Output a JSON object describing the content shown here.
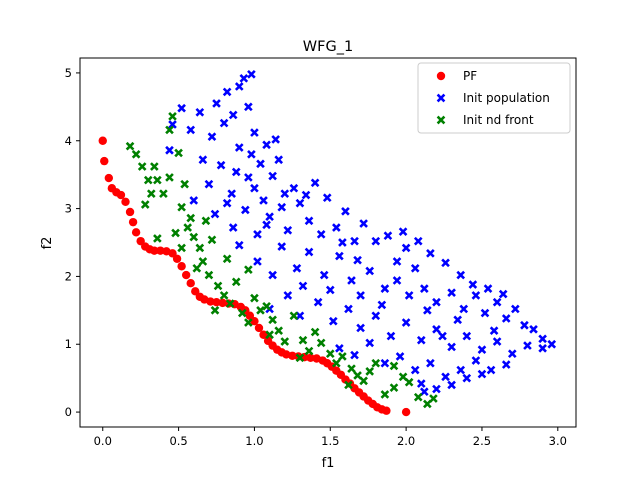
{
  "chart_data": {
    "type": "scatter",
    "title": "WFG_1",
    "xlabel": "f1",
    "ylabel": "f2",
    "xlim": [
      -0.15,
      3.12
    ],
    "ylim": [
      -0.22,
      5.22
    ],
    "xticks": [
      {
        "value": 0.0,
        "label": "0.0"
      },
      {
        "value": 0.5,
        "label": "0.5"
      },
      {
        "value": 1.0,
        "label": "1.0"
      },
      {
        "value": 1.5,
        "label": "1.5"
      },
      {
        "value": 2.0,
        "label": "2.0"
      },
      {
        "value": 2.5,
        "label": "2.5"
      },
      {
        "value": 3.0,
        "label": "3.0"
      }
    ],
    "yticks": [
      {
        "value": 0,
        "label": "0"
      },
      {
        "value": 1,
        "label": "1"
      },
      {
        "value": 2,
        "label": "2"
      },
      {
        "value": 3,
        "label": "3"
      },
      {
        "value": 4,
        "label": "4"
      },
      {
        "value": 5,
        "label": "5"
      }
    ],
    "grid": false,
    "legend_position": "top-right",
    "series": [
      {
        "name": "PF",
        "marker": "circle",
        "color": "#ff0000",
        "points": [
          [
            0.0,
            4.0
          ],
          [
            0.01,
            3.7
          ],
          [
            0.04,
            3.45
          ],
          [
            0.06,
            3.3
          ],
          [
            0.09,
            3.24
          ],
          [
            0.12,
            3.2
          ],
          [
            0.15,
            3.1
          ],
          [
            0.18,
            2.95
          ],
          [
            0.2,
            2.8
          ],
          [
            0.22,
            2.65
          ],
          [
            0.25,
            2.52
          ],
          [
            0.28,
            2.44
          ],
          [
            0.31,
            2.4
          ],
          [
            0.34,
            2.38
          ],
          [
            0.38,
            2.38
          ],
          [
            0.42,
            2.37
          ],
          [
            0.46,
            2.34
          ],
          [
            0.49,
            2.26
          ],
          [
            0.52,
            2.15
          ],
          [
            0.55,
            2.02
          ],
          [
            0.58,
            1.9
          ],
          [
            0.61,
            1.78
          ],
          [
            0.64,
            1.7
          ],
          [
            0.67,
            1.66
          ],
          [
            0.71,
            1.63
          ],
          [
            0.75,
            1.62
          ],
          [
            0.79,
            1.61
          ],
          [
            0.83,
            1.6
          ],
          [
            0.87,
            1.59
          ],
          [
            0.91,
            1.55
          ],
          [
            0.94,
            1.5
          ],
          [
            0.97,
            1.42
          ],
          [
            1.0,
            1.34
          ],
          [
            1.03,
            1.24
          ],
          [
            1.06,
            1.14
          ],
          [
            1.09,
            1.05
          ],
          [
            1.12,
            0.98
          ],
          [
            1.15,
            0.92
          ],
          [
            1.18,
            0.88
          ],
          [
            1.21,
            0.85
          ],
          [
            1.25,
            0.83
          ],
          [
            1.29,
            0.82
          ],
          [
            1.33,
            0.81
          ],
          [
            1.37,
            0.8
          ],
          [
            1.41,
            0.79
          ],
          [
            1.45,
            0.76
          ],
          [
            1.48,
            0.72
          ],
          [
            1.51,
            0.67
          ],
          [
            1.54,
            0.61
          ],
          [
            1.57,
            0.55
          ],
          [
            1.6,
            0.48
          ],
          [
            1.63,
            0.42
          ],
          [
            1.66,
            0.35
          ],
          [
            1.69,
            0.29
          ],
          [
            1.72,
            0.23
          ],
          [
            1.75,
            0.17
          ],
          [
            1.78,
            0.12
          ],
          [
            1.81,
            0.07
          ],
          [
            1.84,
            0.04
          ],
          [
            1.87,
            0.02
          ],
          [
            2.0,
            0.0
          ]
        ]
      },
      {
        "name": "Init population",
        "marker": "x",
        "color": "#0000ff",
        "points": [
          [
            0.44,
            3.86
          ],
          [
            0.46,
            4.24
          ],
          [
            0.52,
            4.48
          ],
          [
            0.58,
            4.16
          ],
          [
            0.64,
            4.42
          ],
          [
            0.66,
            3.72
          ],
          [
            0.72,
            4.06
          ],
          [
            0.75,
            4.55
          ],
          [
            0.8,
            4.26
          ],
          [
            0.82,
            4.72
          ],
          [
            0.86,
            4.38
          ],
          [
            0.9,
            4.8
          ],
          [
            0.93,
            4.92
          ],
          [
            0.96,
            4.5
          ],
          [
            0.98,
            4.98
          ],
          [
            0.7,
            3.36
          ],
          [
            0.78,
            3.64
          ],
          [
            0.85,
            3.22
          ],
          [
            0.9,
            3.9
          ],
          [
            0.96,
            3.46
          ],
          [
            1.0,
            4.12
          ],
          [
            1.04,
            3.66
          ],
          [
            1.08,
            3.94
          ],
          [
            1.12,
            3.48
          ],
          [
            1.16,
            3.72
          ],
          [
            1.2,
            3.22
          ],
          [
            0.6,
            3.12
          ],
          [
            0.74,
            2.92
          ],
          [
            0.86,
            2.72
          ],
          [
            0.94,
            2.98
          ],
          [
            1.02,
            2.62
          ],
          [
            1.1,
            2.88
          ],
          [
            1.22,
            2.68
          ],
          [
            1.3,
            3.08
          ],
          [
            1.36,
            2.82
          ],
          [
            1.4,
            3.38
          ],
          [
            1.48,
            3.16
          ],
          [
            1.54,
            2.72
          ],
          [
            1.6,
            2.96
          ],
          [
            1.66,
            2.52
          ],
          [
            1.72,
            2.78
          ],
          [
            1.8,
            2.52
          ],
          [
            1.88,
            2.6
          ],
          [
            1.94,
            2.22
          ],
          [
            2.0,
            2.42
          ],
          [
            2.06,
            2.12
          ],
          [
            1.02,
            2.22
          ],
          [
            1.12,
            2.02
          ],
          [
            1.18,
            2.44
          ],
          [
            1.28,
            2.12
          ],
          [
            1.36,
            2.36
          ],
          [
            1.46,
            2.02
          ],
          [
            1.56,
            2.3
          ],
          [
            1.64,
            1.94
          ],
          [
            1.76,
            2.08
          ],
          [
            1.86,
            1.82
          ],
          [
            1.94,
            1.94
          ],
          [
            2.02,
            1.72
          ],
          [
            2.12,
            1.82
          ],
          [
            2.2,
            1.62
          ],
          [
            2.3,
            1.76
          ],
          [
            2.38,
            1.52
          ],
          [
            2.46,
            1.72
          ],
          [
            2.52,
            1.46
          ],
          [
            2.6,
            1.62
          ],
          [
            2.66,
            1.38
          ],
          [
            2.72,
            1.52
          ],
          [
            2.78,
            1.28
          ],
          [
            2.84,
            1.22
          ],
          [
            2.9,
            1.08
          ],
          [
            2.96,
            1.0
          ],
          [
            2.9,
            0.94
          ],
          [
            1.1,
            1.52
          ],
          [
            1.22,
            1.72
          ],
          [
            1.3,
            1.42
          ],
          [
            1.42,
            1.62
          ],
          [
            1.52,
            1.34
          ],
          [
            1.62,
            1.52
          ],
          [
            1.7,
            1.24
          ],
          [
            1.8,
            1.42
          ],
          [
            1.9,
            1.12
          ],
          [
            2.0,
            1.32
          ],
          [
            2.1,
            1.06
          ],
          [
            2.2,
            1.22
          ],
          [
            2.3,
            0.96
          ],
          [
            2.4,
            1.12
          ],
          [
            2.5,
            0.92
          ],
          [
            2.6,
            1.04
          ],
          [
            2.7,
            0.86
          ],
          [
            2.8,
            0.98
          ],
          [
            1.56,
            0.94
          ],
          [
            1.66,
            0.84
          ],
          [
            1.76,
            1.02
          ],
          [
            1.86,
            0.72
          ],
          [
            1.96,
            0.82
          ],
          [
            2.06,
            0.62
          ],
          [
            2.16,
            0.72
          ],
          [
            2.26,
            0.52
          ],
          [
            2.36,
            0.62
          ],
          [
            2.46,
            0.76
          ],
          [
            2.56,
            0.62
          ],
          [
            2.66,
            0.7
          ],
          [
            2.1,
            0.42
          ],
          [
            2.2,
            0.34
          ],
          [
            2.3,
            0.4
          ],
          [
            2.4,
            0.5
          ],
          [
            2.5,
            0.56
          ],
          [
            2.12,
            0.3
          ],
          [
            1.98,
            2.66
          ],
          [
            2.08,
            2.52
          ],
          [
            2.16,
            2.34
          ],
          [
            2.26,
            2.2
          ],
          [
            2.36,
            2.02
          ],
          [
            2.44,
            1.88
          ],
          [
            2.54,
            1.82
          ],
          [
            2.64,
            1.74
          ],
          [
            2.14,
            1.5
          ],
          [
            2.34,
            1.36
          ],
          [
            2.24,
            1.12
          ],
          [
            2.58,
            1.2
          ],
          [
            1.44,
            2.62
          ],
          [
            1.58,
            2.5
          ],
          [
            1.68,
            2.24
          ],
          [
            1.32,
            1.86
          ],
          [
            1.5,
            1.8
          ],
          [
            1.7,
            1.72
          ],
          [
            1.84,
            1.58
          ],
          [
            1.0,
            3.3
          ],
          [
            1.06,
            3.12
          ],
          [
            1.18,
            3.02
          ],
          [
            1.26,
            3.3
          ],
          [
            1.34,
            3.2
          ],
          [
            0.88,
            3.54
          ],
          [
            0.98,
            3.8
          ],
          [
            1.14,
            4.02
          ],
          [
            0.82,
            3.08
          ],
          [
            0.9,
            2.46
          ],
          [
            1.08,
            2.76
          ]
        ]
      },
      {
        "name": "Init nd front",
        "marker": "x",
        "color": "#008000",
        "points": [
          [
            0.18,
            3.92
          ],
          [
            0.22,
            3.8
          ],
          [
            0.26,
            3.62
          ],
          [
            0.3,
            3.42
          ],
          [
            0.28,
            3.06
          ],
          [
            0.34,
            3.62
          ],
          [
            0.36,
            3.42
          ],
          [
            0.4,
            3.22
          ],
          [
            0.44,
            3.46
          ],
          [
            0.44,
            4.16
          ],
          [
            0.46,
            4.36
          ],
          [
            0.5,
            3.82
          ],
          [
            0.52,
            3.02
          ],
          [
            0.54,
            3.36
          ],
          [
            0.56,
            2.72
          ],
          [
            0.6,
            2.58
          ],
          [
            0.36,
            2.56
          ],
          [
            0.48,
            2.64
          ],
          [
            0.58,
            2.86
          ],
          [
            0.64,
            2.42
          ],
          [
            0.66,
            2.22
          ],
          [
            0.7,
            2.02
          ],
          [
            0.62,
            2.12
          ],
          [
            0.76,
            1.86
          ],
          [
            0.8,
            1.72
          ],
          [
            0.84,
            1.6
          ],
          [
            0.88,
            1.92
          ],
          [
            0.92,
            1.46
          ],
          [
            0.96,
            1.32
          ],
          [
            1.0,
            1.68
          ],
          [
            1.04,
            1.5
          ],
          [
            1.08,
            1.56
          ],
          [
            1.12,
            1.36
          ],
          [
            1.16,
            1.2
          ],
          [
            1.2,
            1.04
          ],
          [
            1.26,
            1.42
          ],
          [
            1.32,
            1.06
          ],
          [
            1.36,
            0.9
          ],
          [
            1.4,
            1.18
          ],
          [
            1.44,
            1.02
          ],
          [
            1.5,
            0.86
          ],
          [
            1.54,
            0.72
          ],
          [
            1.58,
            0.82
          ],
          [
            1.64,
            0.64
          ],
          [
            1.68,
            0.54
          ],
          [
            1.72,
            0.46
          ],
          [
            1.76,
            0.6
          ],
          [
            1.8,
            0.72
          ],
          [
            1.92,
            0.36
          ],
          [
            1.98,
            0.52
          ],
          [
            2.02,
            0.44
          ],
          [
            2.08,
            0.22
          ],
          [
            2.14,
            0.12
          ],
          [
            2.18,
            0.2
          ],
          [
            1.92,
            0.68
          ],
          [
            0.72,
            2.54
          ],
          [
            0.82,
            2.26
          ],
          [
            0.74,
            1.5
          ],
          [
            0.96,
            2.1
          ],
          [
            1.1,
            1.14
          ],
          [
            1.3,
            0.8
          ],
          [
            1.62,
            0.4
          ],
          [
            1.86,
            0.26
          ],
          [
            0.52,
            2.42
          ],
          [
            0.68,
            2.82
          ],
          [
            0.32,
            3.22
          ]
        ]
      }
    ]
  }
}
